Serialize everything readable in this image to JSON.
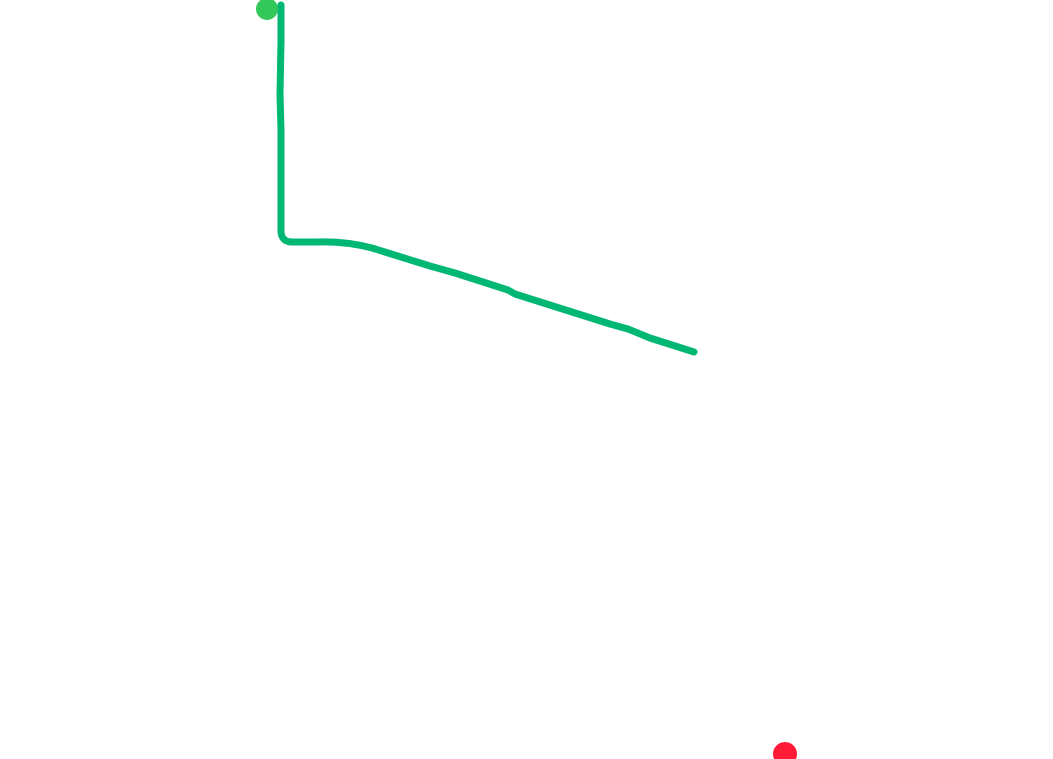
{
  "map": {
    "background_color": "#ffffff",
    "route": {
      "color": "#00b774"
    },
    "start_marker": {
      "icon": "start-dot-icon",
      "color": "#34c759"
    },
    "end_marker": {
      "icon": "end-dot-icon",
      "color": "#ff1a36"
    }
  }
}
